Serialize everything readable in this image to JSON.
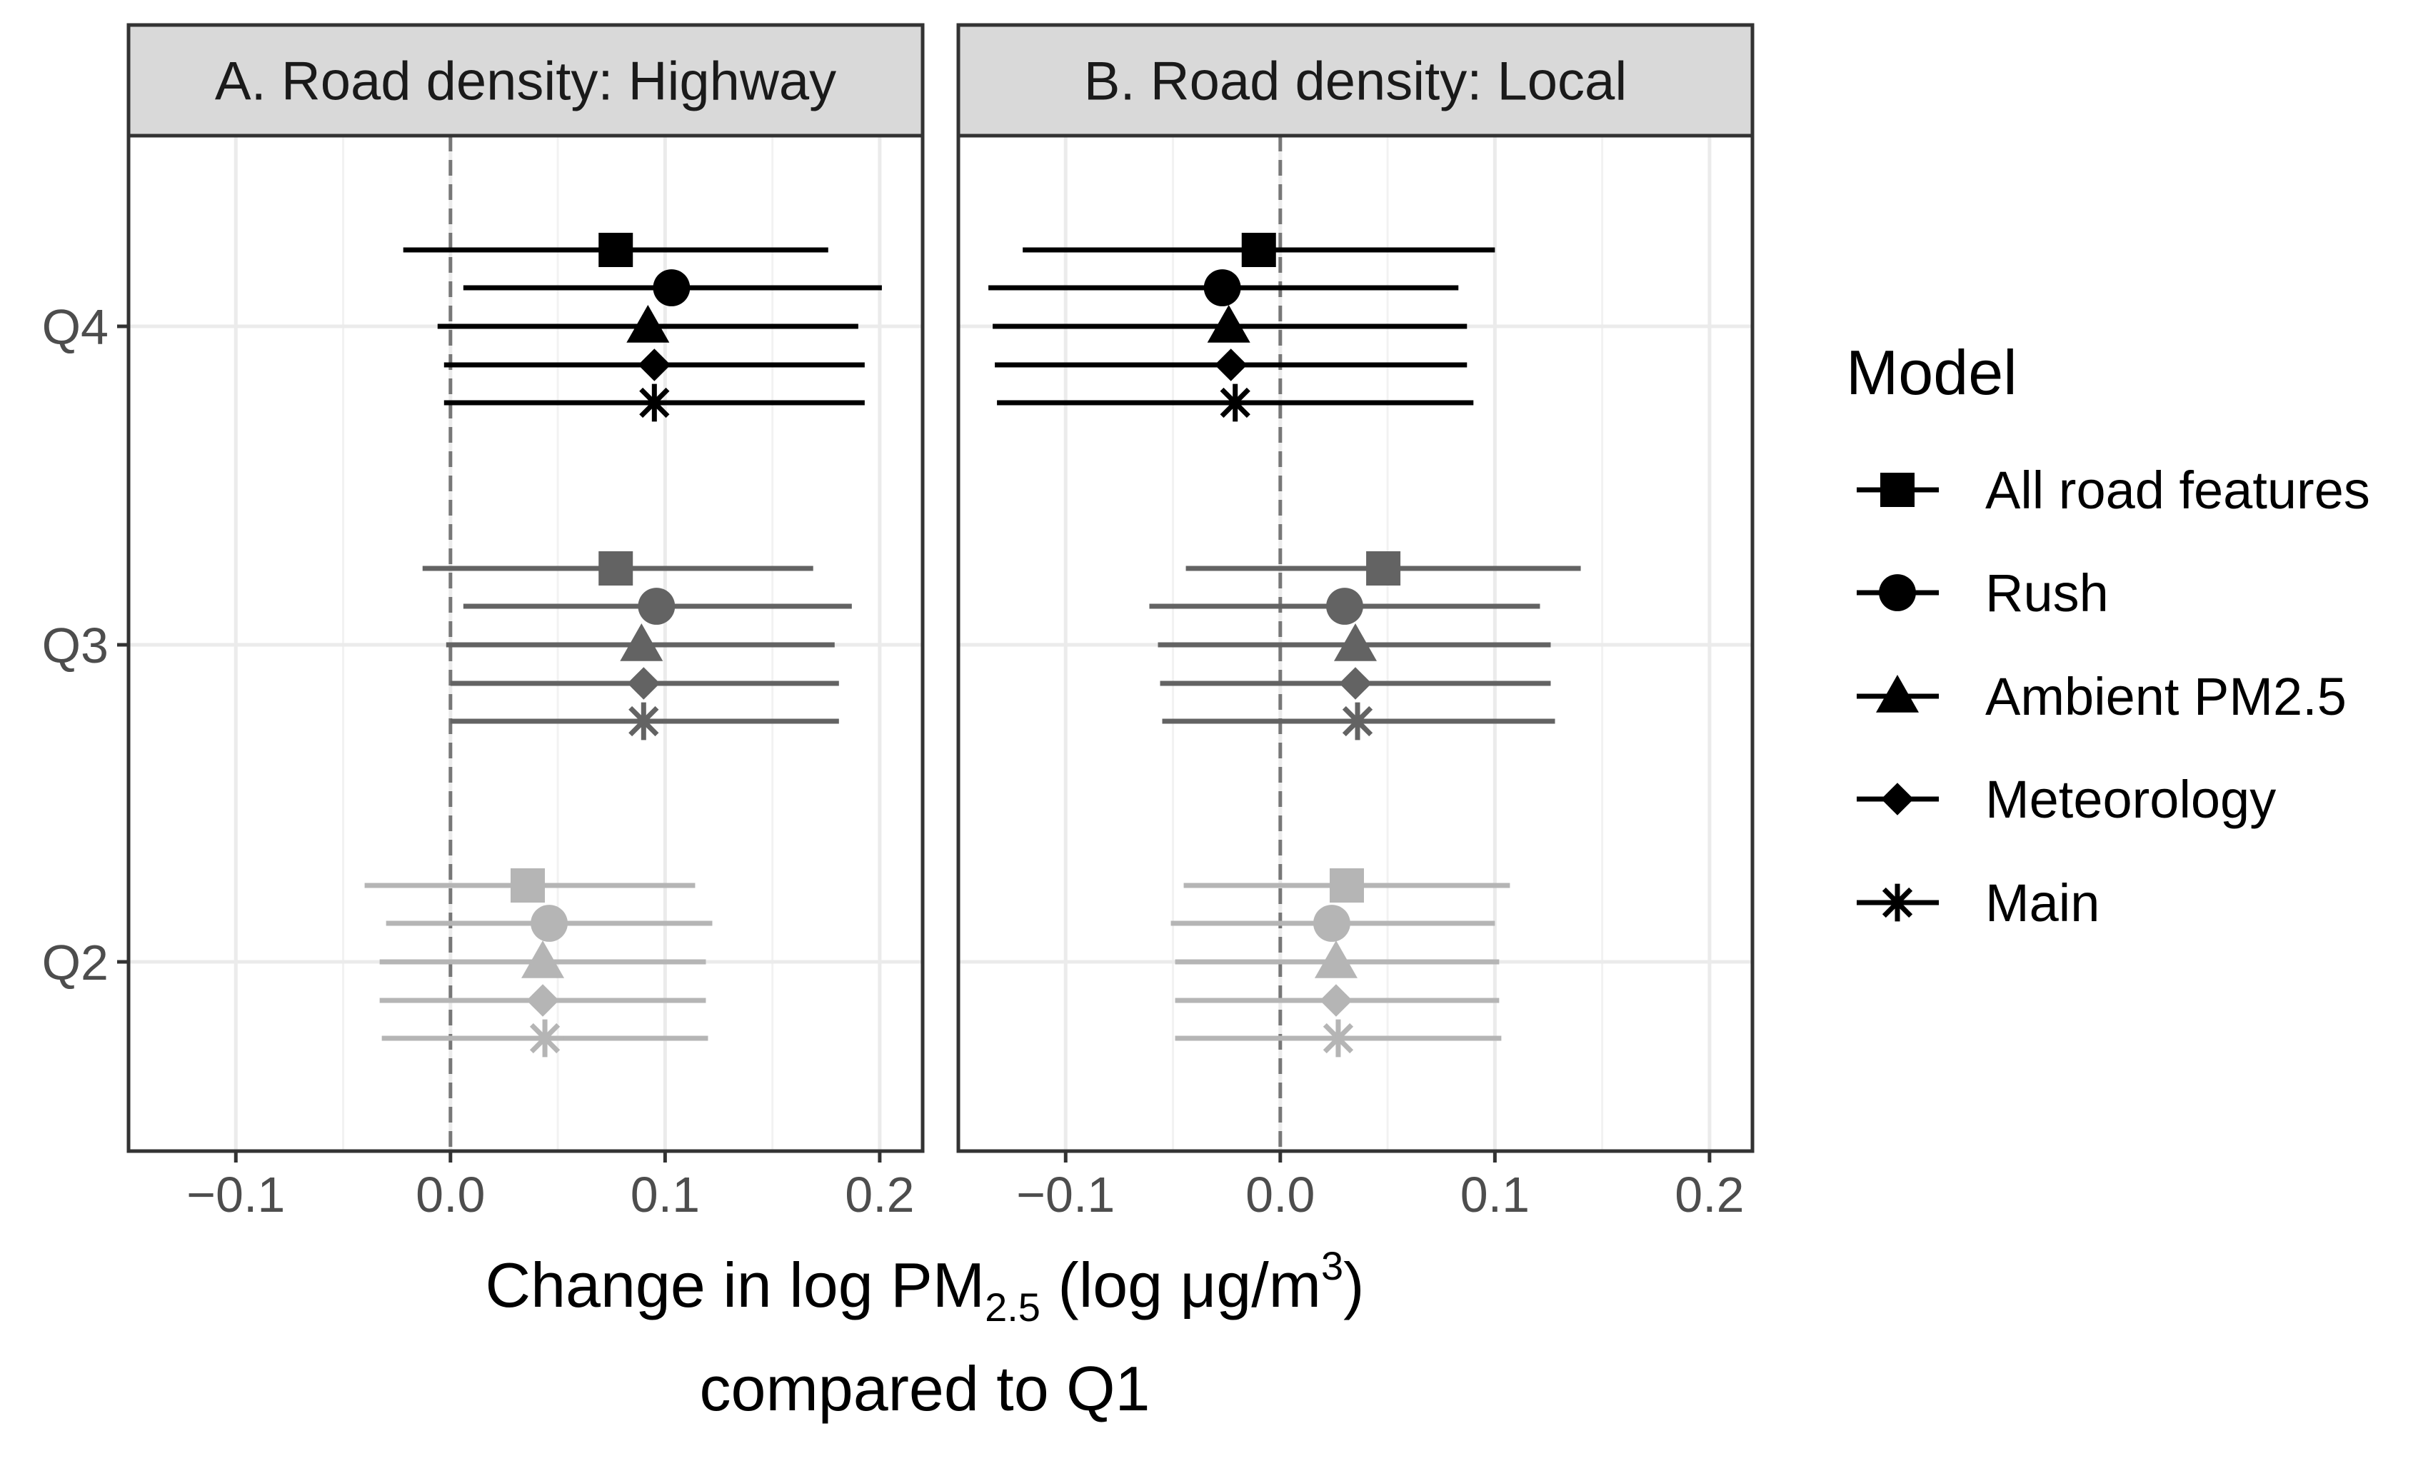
{
  "chart_data": {
    "type": "forest-plot",
    "xlabel_main": "Change in log PM",
    "xlabel_sub": "2.5",
    "xlabel_units": " (log μg/m",
    "xlabel_sup": "3",
    "xlabel_close": ")",
    "xlabel_line2": "compared to Q1",
    "xlim": [
      -0.15,
      0.22
    ],
    "xticks": [
      -0.1,
      0.0,
      0.1,
      0.2
    ],
    "xtick_labels": [
      "−0.1",
      "0.0",
      "0.1",
      "0.2"
    ],
    "reference_line": 0.0,
    "categories": [
      "Q4",
      "Q3",
      "Q2"
    ],
    "category_colors": {
      "Q4": "#000000",
      "Q3": "#636363",
      "Q2": "#b5b5b5"
    },
    "legend_title": "Model",
    "models": [
      {
        "name": "All road features",
        "marker": "square"
      },
      {
        "name": "Rush",
        "marker": "circle"
      },
      {
        "name": "Ambient PM2.5",
        "marker": "triangle"
      },
      {
        "name": "Meteorology",
        "marker": "diamond"
      },
      {
        "name": "Main",
        "marker": "asterisk"
      }
    ],
    "panels": [
      {
        "title": "A. Road density: Highway",
        "series": {
          "All road features": {
            "Q4": {
              "est": 0.077,
              "lo": -0.022,
              "hi": 0.176
            },
            "Q3": {
              "est": 0.077,
              "lo": -0.013,
              "hi": 0.169
            },
            "Q2": {
              "est": 0.036,
              "lo": -0.04,
              "hi": 0.114
            }
          },
          "Rush": {
            "Q4": {
              "est": 0.103,
              "lo": 0.006,
              "hi": 0.201
            },
            "Q3": {
              "est": 0.096,
              "lo": 0.006,
              "hi": 0.187
            },
            "Q2": {
              "est": 0.046,
              "lo": -0.03,
              "hi": 0.122
            }
          },
          "Ambient PM2.5": {
            "Q4": {
              "est": 0.092,
              "lo": -0.006,
              "hi": 0.19
            },
            "Q3": {
              "est": 0.089,
              "lo": -0.002,
              "hi": 0.179
            },
            "Q2": {
              "est": 0.043,
              "lo": -0.033,
              "hi": 0.119
            }
          },
          "Meteorology": {
            "Q4": {
              "est": 0.095,
              "lo": -0.003,
              "hi": 0.193
            },
            "Q3": {
              "est": 0.09,
              "lo": 0.0,
              "hi": 0.181
            },
            "Q2": {
              "est": 0.043,
              "lo": -0.033,
              "hi": 0.119
            }
          },
          "Main": {
            "Q4": {
              "est": 0.095,
              "lo": -0.003,
              "hi": 0.193
            },
            "Q3": {
              "est": 0.09,
              "lo": 0.0,
              "hi": 0.181
            },
            "Q2": {
              "est": 0.044,
              "lo": -0.032,
              "hi": 0.12
            }
          }
        }
      },
      {
        "title": "B. Road density: Local",
        "series": {
          "All road features": {
            "Q4": {
              "est": -0.01,
              "lo": -0.12,
              "hi": 0.1
            },
            "Q3": {
              "est": 0.048,
              "lo": -0.044,
              "hi": 0.14
            },
            "Q2": {
              "est": 0.031,
              "lo": -0.045,
              "hi": 0.107
            }
          },
          "Rush": {
            "Q4": {
              "est": -0.027,
              "lo": -0.136,
              "hi": 0.083
            },
            "Q3": {
              "est": 0.03,
              "lo": -0.061,
              "hi": 0.121
            },
            "Q2": {
              "est": 0.024,
              "lo": -0.051,
              "hi": 0.1
            }
          },
          "Ambient PM2.5": {
            "Q4": {
              "est": -0.024,
              "lo": -0.134,
              "hi": 0.087
            },
            "Q3": {
              "est": 0.035,
              "lo": -0.057,
              "hi": 0.126
            },
            "Q2": {
              "est": 0.026,
              "lo": -0.049,
              "hi": 0.102
            }
          },
          "Meteorology": {
            "Q4": {
              "est": -0.023,
              "lo": -0.133,
              "hi": 0.087
            },
            "Q3": {
              "est": 0.035,
              "lo": -0.056,
              "hi": 0.126
            },
            "Q2": {
              "est": 0.026,
              "lo": -0.049,
              "hi": 0.102
            }
          },
          "Main": {
            "Q4": {
              "est": -0.021,
              "lo": -0.132,
              "hi": 0.09
            },
            "Q3": {
              "est": 0.036,
              "lo": -0.055,
              "hi": 0.128
            },
            "Q2": {
              "est": 0.027,
              "lo": -0.049,
              "hi": 0.103
            }
          }
        }
      }
    ]
  }
}
